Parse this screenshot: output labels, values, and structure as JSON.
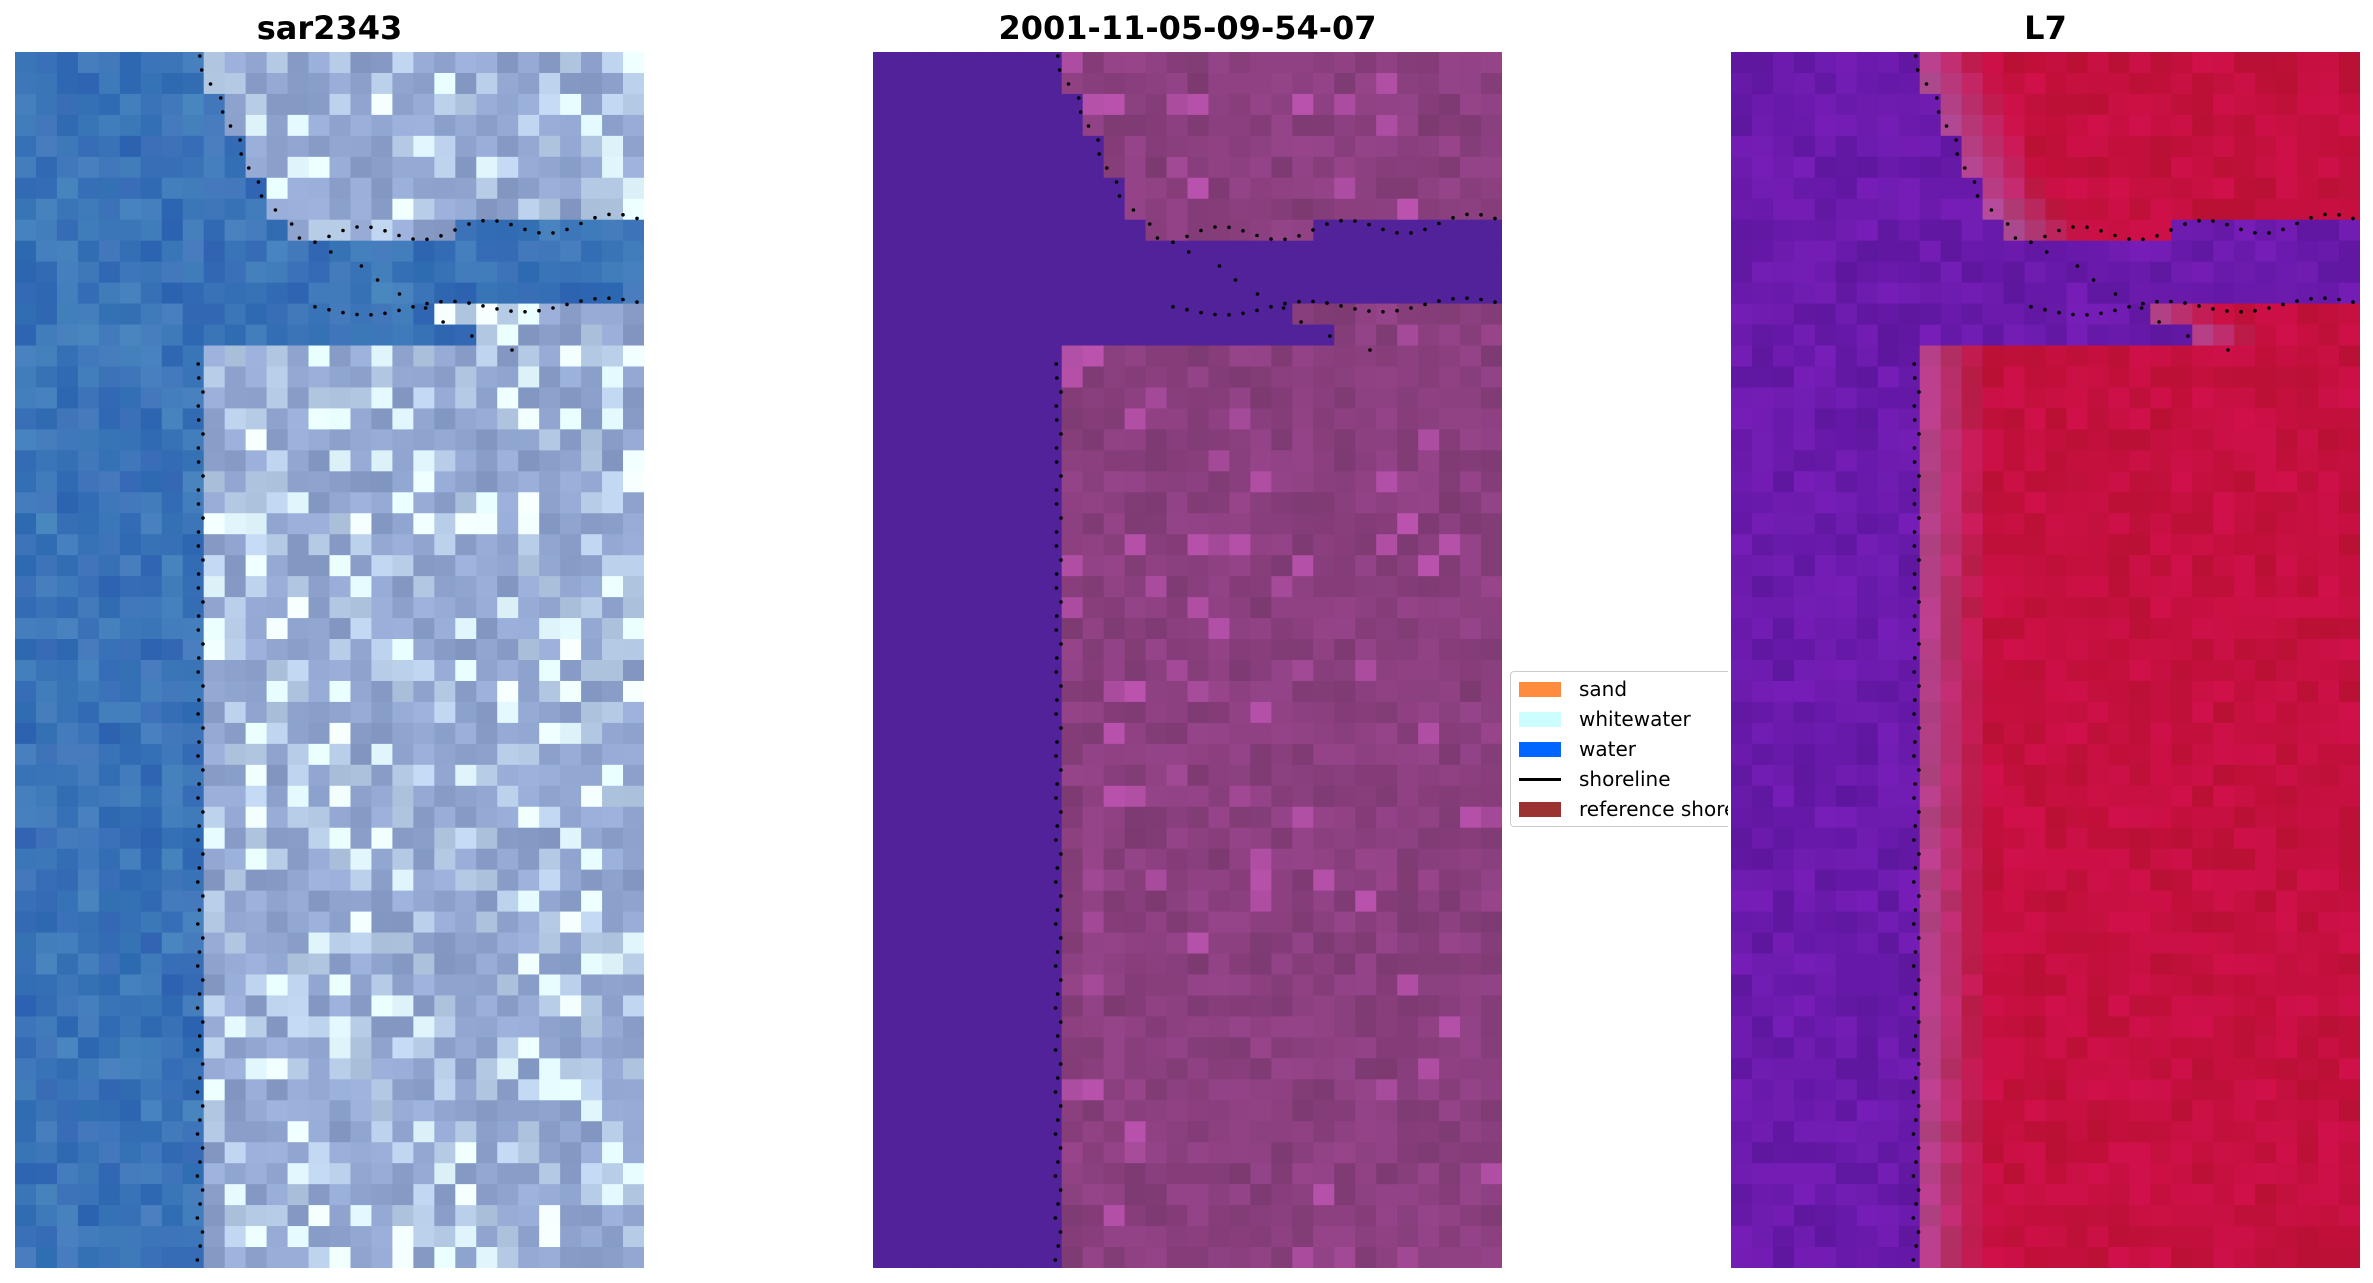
{
  "panels": [
    {
      "id": "rgb",
      "title": "sar2343"
    },
    {
      "id": "classified",
      "title": "2001-11-05-09-54-07"
    },
    {
      "id": "index",
      "title": "L7"
    }
  ],
  "legend": {
    "items": [
      {
        "label": "sand",
        "color": "#ff8c3e",
        "kind": "patch"
      },
      {
        "label": "whitewater",
        "color": "#ccfdff",
        "kind": "patch"
      },
      {
        "label": "water",
        "color": "#0066ff",
        "kind": "patch"
      },
      {
        "label": "shoreline",
        "color": "#000000",
        "kind": "line"
      },
      {
        "label": "reference shoreline",
        "color": "#9c3333",
        "kind": "patch"
      }
    ]
  },
  "colors": {
    "water_class": "#51229a",
    "land_class": "#8a3f7e",
    "shoreline": "#000000",
    "rgb_water": "#3b6fb8",
    "rgb_land": "#8fa5cf",
    "index_water": "#6a1aab",
    "index_land": "#c5103f"
  }
}
